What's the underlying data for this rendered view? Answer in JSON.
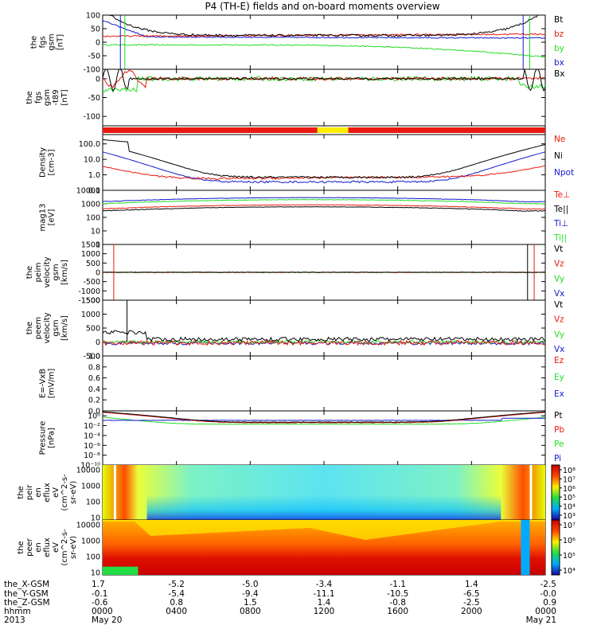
{
  "title": "P4 (TH-E) fields and on-board moments overview",
  "colors": {
    "black": "#000000",
    "red": "#e8190f",
    "green": "#22dd22",
    "blue": "#1018cc",
    "yellow": "#ffee00",
    "orange_red": "#ff2a00"
  },
  "chart_data": [
    {
      "type": "line",
      "panel": "fgs-gsm",
      "ylabel": [
        "the",
        "fgs",
        "gsm",
        "[nT]"
      ],
      "ylim": [
        -100,
        100
      ],
      "y_ticks": [
        "100",
        "50",
        "0",
        "-50",
        "-100"
      ],
      "legend": [
        "Bt",
        "bz",
        "by",
        "bx"
      ],
      "legend_colors": [
        "#000000",
        "#e8190f",
        "#22dd22",
        "#1018cc"
      ]
    },
    {
      "type": "line",
      "panel": "fgs-gsm-t89",
      "ylabel": [
        "the",
        "fgs",
        "gsm",
        "-t89",
        "[nT]"
      ],
      "ylim": [
        -125,
        25
      ],
      "y_ticks": [
        "0",
        "-50",
        "-100"
      ],
      "legend": [
        "Bx"
      ],
      "legend_colors": [
        "#000000"
      ]
    },
    {
      "type": "bar",
      "panel": "mode-bar",
      "legend": []
    },
    {
      "type": "line",
      "panel": "density",
      "ylabel": [
        "Density",
        "[cm-3]"
      ],
      "yscale": "log",
      "ylim": [
        0.1,
        400
      ],
      "y_ticks": [
        "100.0",
        "10.0",
        "1.0",
        "0.1"
      ],
      "legend": [
        "Ne",
        "Ni",
        "Npot"
      ],
      "legend_colors": [
        "#e8190f",
        "#000000",
        "#1018cc"
      ]
    },
    {
      "type": "line",
      "panel": "temperature",
      "ylabel": [
        "mag13",
        "[eV]"
      ],
      "yscale": "log",
      "ylim": [
        1,
        10000
      ],
      "y_ticks": [
        "10000",
        "1000",
        "100",
        "10",
        "1"
      ],
      "legend": [
        "Te⊥",
        "Te||",
        "Ti⊥",
        "Ti||"
      ],
      "legend_colors": [
        "#e8190f",
        "#000000",
        "#1018cc",
        "#22dd22"
      ]
    },
    {
      "type": "line",
      "panel": "peim-velocity",
      "ylabel": [
        "the",
        "peim",
        "velocity",
        "gsm",
        "[km/s]"
      ],
      "ylim": [
        -1500,
        1500
      ],
      "y_ticks": [
        "1500",
        "1000",
        "500",
        "0",
        "-500",
        "-1000",
        "-1500"
      ],
      "legend": [
        "Vt",
        "Vz",
        "Vy",
        "Vx"
      ],
      "legend_colors": [
        "#000000",
        "#e8190f",
        "#22dd22",
        "#1018cc"
      ]
    },
    {
      "type": "line",
      "panel": "peem-velocity",
      "ylabel": [
        "the",
        "peem",
        "velocity",
        "gsm",
        "[km/s]"
      ],
      "ylim": [
        -500,
        1500
      ],
      "y_ticks": [
        "1500",
        "1000",
        "500",
        "0",
        "-500"
      ],
      "legend": [
        "Vt",
        "Vz",
        "Vy",
        "Vx"
      ],
      "legend_colors": [
        "#000000",
        "#e8190f",
        "#22dd22",
        "#1018cc"
      ]
    },
    {
      "type": "line",
      "panel": "e-field",
      "ylabel": [
        "E=-VxB",
        "[mV/m]"
      ],
      "ylim": [
        0,
        1
      ],
      "y_ticks": [
        "1.0",
        "0.8",
        "0.6",
        "0.4",
        "0.2",
        "0.0"
      ],
      "legend": [
        "Ez",
        "Ey",
        "Ex"
      ],
      "legend_colors": [
        "#e8190f",
        "#22dd22",
        "#1018cc"
      ]
    },
    {
      "type": "line",
      "panel": "pressure",
      "ylabel": [
        "Pressure",
        "[nPa]"
      ],
      "yscale": "log",
      "ylim": [
        1e-10,
        10
      ],
      "y_ticks": [
        "10⁰",
        "10⁻²",
        "10⁻⁴",
        "10⁻⁶",
        "10⁻⁸",
        "10⁻¹⁰"
      ],
      "legend": [
        "Pt",
        "Pb",
        "Pe",
        "Pi"
      ],
      "legend_colors": [
        "#000000",
        "#e8190f",
        "#22dd22",
        "#1018cc"
      ]
    },
    {
      "type": "heatmap",
      "panel": "peir-spectrogram",
      "ylabel": [
        "the",
        "peir",
        "en",
        "eflux",
        "eV",
        "(cm^2-s-",
        "sr-eV)"
      ],
      "yscale": "log",
      "ylim": [
        7,
        20000
      ],
      "y_ticks": [
        "10000",
        "1000",
        "100",
        "10"
      ],
      "colorbar_ticks": [
        "10⁸",
        "10⁷",
        "10⁶",
        "10⁵",
        "10⁴",
        "10³"
      ]
    },
    {
      "type": "heatmap",
      "panel": "peer-spectrogram",
      "ylabel": [
        "the",
        "peer",
        "en",
        "eflux",
        "eV",
        "(cm^2-s-",
        "sr-eV)"
      ],
      "yscale": "log",
      "ylim": [
        7,
        20000
      ],
      "y_ticks": [
        "10000",
        "1000",
        "100",
        "10"
      ],
      "colorbar_ticks": [
        "10⁷",
        "10⁶",
        "10⁵",
        "10⁴"
      ]
    }
  ],
  "ephemeris": {
    "labels": [
      "the_X-GSM",
      "the_Y-GSM",
      "the_Z-GSM",
      "hhmm",
      "2013"
    ],
    "columns": [
      [
        "1.7",
        "-0.1",
        "-0.6",
        "0000",
        "May 20"
      ],
      [
        "-5.2",
        "-5.4",
        "0.8",
        "0400",
        ""
      ],
      [
        "-5.0",
        "-9.4",
        "1.5",
        "0800",
        ""
      ],
      [
        "-3.4",
        "-11.1",
        "1.4",
        "1200",
        ""
      ],
      [
        "-1.1",
        "-10.5",
        "-0.8",
        "1600",
        ""
      ],
      [
        "1.4",
        "-6.5",
        "-2.5",
        "2000",
        ""
      ],
      [
        "-2.5",
        "-0.0",
        "0.9",
        "0000",
        "May 21"
      ]
    ]
  }
}
